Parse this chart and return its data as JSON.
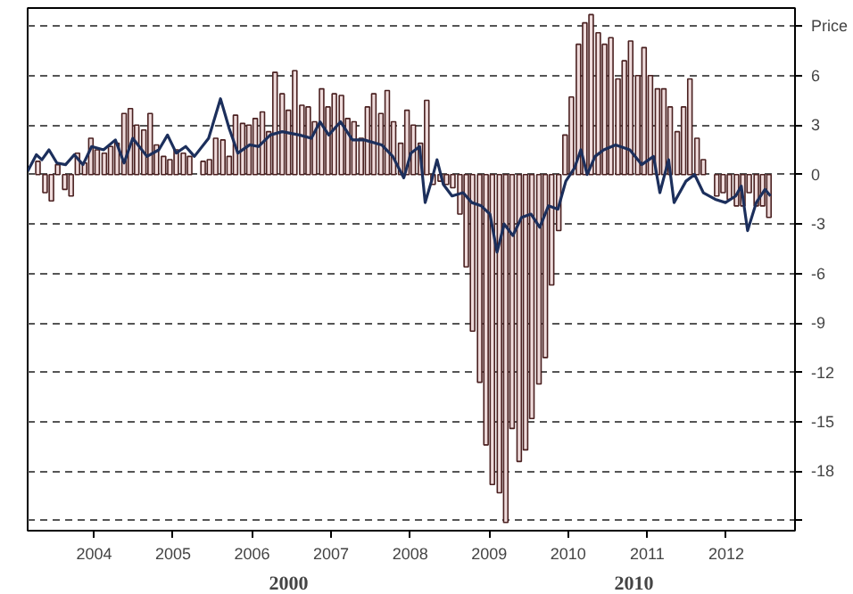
{
  "chart_data": {
    "type": "bar",
    "annotations": [
      "2000",
      "2010"
    ],
    "xlim": [
      2003.16,
      2012.87
    ],
    "xticks": [
      2004,
      2005,
      2006,
      2007,
      2008,
      2009,
      2010,
      2011,
      2012
    ],
    "ylim": [
      -21.6,
      10.1
    ],
    "yticks": [
      {
        "value": 9,
        "label": "Price"
      },
      6,
      3,
      0,
      -3,
      -6,
      -9,
      -12,
      -15,
      -18,
      {
        "value": -21,
        "label": null
      }
    ],
    "grid": "y",
    "series": [
      {
        "color": "#efdcdc",
        "x": [
          2003.29,
          2003.38,
          2003.46,
          2003.54,
          2003.63,
          2003.71,
          2003.79,
          2003.88,
          2003.96,
          2004.04,
          2004.13,
          2004.21,
          2004.29,
          2004.38,
          2004.46,
          2004.54,
          2004.63,
          2004.71,
          2004.79,
          2004.88,
          2004.96,
          2005.04,
          2005.13,
          2005.21,
          2005.29,
          2005.38,
          2005.46,
          2005.54,
          2005.63,
          2005.71,
          2005.79,
          2005.88,
          2005.96,
          2006.04,
          2006.13,
          2006.21,
          2006.29,
          2006.38,
          2006.46,
          2006.54,
          2006.63,
          2006.71,
          2006.79,
          2006.88,
          2006.96,
          2007.04,
          2007.13,
          2007.21,
          2007.29,
          2007.38,
          2007.46,
          2007.54,
          2007.63,
          2007.71,
          2007.79,
          2007.88,
          2007.96,
          2008.04,
          2008.13,
          2008.21,
          2008.29,
          2008.38,
          2008.46,
          2008.54,
          2008.63,
          2008.71,
          2008.79,
          2008.88,
          2008.96,
          2009.04,
          2009.13,
          2009.21,
          2009.29,
          2009.38,
          2009.46,
          2009.54,
          2009.63,
          2009.71,
          2009.79,
          2009.88,
          2009.96,
          2010.04,
          2010.13,
          2010.21,
          2010.29,
          2010.38,
          2010.46,
          2010.54,
          2010.63,
          2010.71,
          2010.79,
          2010.88,
          2010.96,
          2011.04,
          2011.13,
          2011.21,
          2011.29,
          2011.38,
          2011.46,
          2011.54,
          2011.63,
          2011.71,
          2011.79,
          2011.88,
          2011.96,
          2012.04,
          2012.13,
          2012.21,
          2012.29,
          2012.38,
          2012.46,
          2012.54
        ],
        "values": [
          0.8,
          -1.1,
          -1.6,
          0.6,
          -0.9,
          -1.3,
          1.3,
          0.7,
          2.2,
          1.5,
          1.3,
          1.7,
          1.9,
          3.7,
          4.0,
          3.0,
          2.7,
          3.7,
          1.8,
          1.1,
          0.9,
          1.5,
          1.3,
          1.1,
          null,
          0.8,
          0.9,
          2.2,
          2.1,
          1.1,
          3.6,
          3.1,
          3.0,
          3.4,
          3.8,
          2.6,
          6.2,
          4.9,
          3.9,
          6.3,
          4.2,
          4.1,
          3.2,
          5.2,
          4.1,
          4.9,
          4.8,
          3.4,
          3.2,
          2.2,
          4.1,
          4.9,
          3.7,
          5.1,
          3.2,
          1.9,
          3.9,
          3.0,
          1.9,
          4.5,
          -0.6,
          -0.4,
          -0.6,
          -0.8,
          -2.4,
          -5.6,
          -9.5,
          -12.6,
          -16.4,
          -18.8,
          -19.3,
          -21.1,
          -15.4,
          -17.4,
          -16.7,
          -14.8,
          -12.7,
          -11.1,
          -6.7,
          -3.4,
          2.4,
          4.7,
          7.9,
          9.2,
          9.7,
          8.6,
          7.9,
          8.3,
          5.8,
          6.9,
          8.1,
          6.0,
          7.7,
          6.0,
          5.2,
          5.2,
          4.1,
          2.6,
          4.1,
          5.8,
          2.2,
          0.9,
          null,
          -1.3,
          -1.1,
          -1.5,
          -1.9,
          -1.9,
          -1.1,
          -1.9,
          -1.9,
          -2.6
        ]
      },
      {
        "type": "line",
        "color": "#1c2f5c",
        "x": [
          2003.16,
          2003.27,
          2003.34,
          2003.43,
          2003.53,
          2003.64,
          2003.75,
          2003.86,
          2003.97,
          2004.12,
          2004.27,
          2004.38,
          2004.49,
          2004.67,
          2004.82,
          2004.93,
          2005.04,
          2005.16,
          2005.27,
          2005.45,
          2005.6,
          2005.71,
          2005.82,
          2005.97,
          2006.08,
          2006.23,
          2006.38,
          2006.6,
          2006.75,
          2006.86,
          2006.97,
          2007.12,
          2007.27,
          2007.42,
          2007.64,
          2007.78,
          2007.92,
          2008.01,
          2008.12,
          2008.19,
          2008.27,
          2008.34,
          2008.42,
          2008.53,
          2008.67,
          2008.78,
          2008.9,
          2009.01,
          2009.1,
          2009.19,
          2009.3,
          2009.41,
          2009.53,
          2009.64,
          2009.75,
          2009.87,
          2009.97,
          2010.08,
          2010.16,
          2010.24,
          2010.34,
          2010.45,
          2010.6,
          2010.78,
          2010.93,
          2011.08,
          2011.16,
          2011.27,
          2011.34,
          2011.49,
          2011.6,
          2011.71,
          2011.86,
          2011.99,
          2012.12,
          2012.19,
          2012.27,
          2012.38,
          2012.49,
          2012.56
        ],
        "values": [
          0.2,
          1.2,
          0.9,
          1.5,
          0.7,
          0.6,
          1.2,
          0.6,
          1.7,
          1.5,
          2.1,
          0.7,
          2.2,
          1.1,
          1.5,
          2.4,
          1.3,
          1.7,
          1.1,
          2.2,
          4.6,
          2.8,
          1.3,
          1.8,
          1.7,
          2.4,
          2.6,
          2.4,
          2.2,
          3.2,
          2.4,
          3.2,
          2.1,
          2.1,
          1.8,
          1.1,
          -0.2,
          1.3,
          1.7,
          -1.7,
          -0.4,
          0.9,
          -0.6,
          -1.3,
          -1.1,
          -1.7,
          -1.9,
          -2.4,
          -4.7,
          -3.0,
          -3.7,
          -2.6,
          -2.4,
          -3.2,
          -1.9,
          -2.1,
          -0.4,
          0.4,
          1.5,
          0,
          1.1,
          1.5,
          1.8,
          1.5,
          0.6,
          1.1,
          -1.1,
          0.9,
          -1.7,
          -0.4,
          0,
          -1.1,
          -1.5,
          -1.7,
          -1.3,
          -0.7,
          -3.4,
          -1.7,
          -0.9,
          -1.3
        ]
      }
    ]
  }
}
